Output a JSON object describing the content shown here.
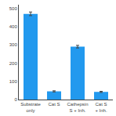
{
  "chart_data": {
    "type": "bar",
    "categories": [
      "Substrate\nonly",
      "Cat S",
      "Cathepsin\nS + Inh.",
      "Cat S\n+ Inh."
    ],
    "values": [
      470,
      45,
      290,
      42
    ],
    "errors": [
      10,
      3,
      7,
      3
    ],
    "color": "#2299ee",
    "ylim": [
      0,
      520
    ],
    "yticks": [
      0,
      100,
      200,
      300,
      400,
      500
    ],
    "grid": false
  }
}
